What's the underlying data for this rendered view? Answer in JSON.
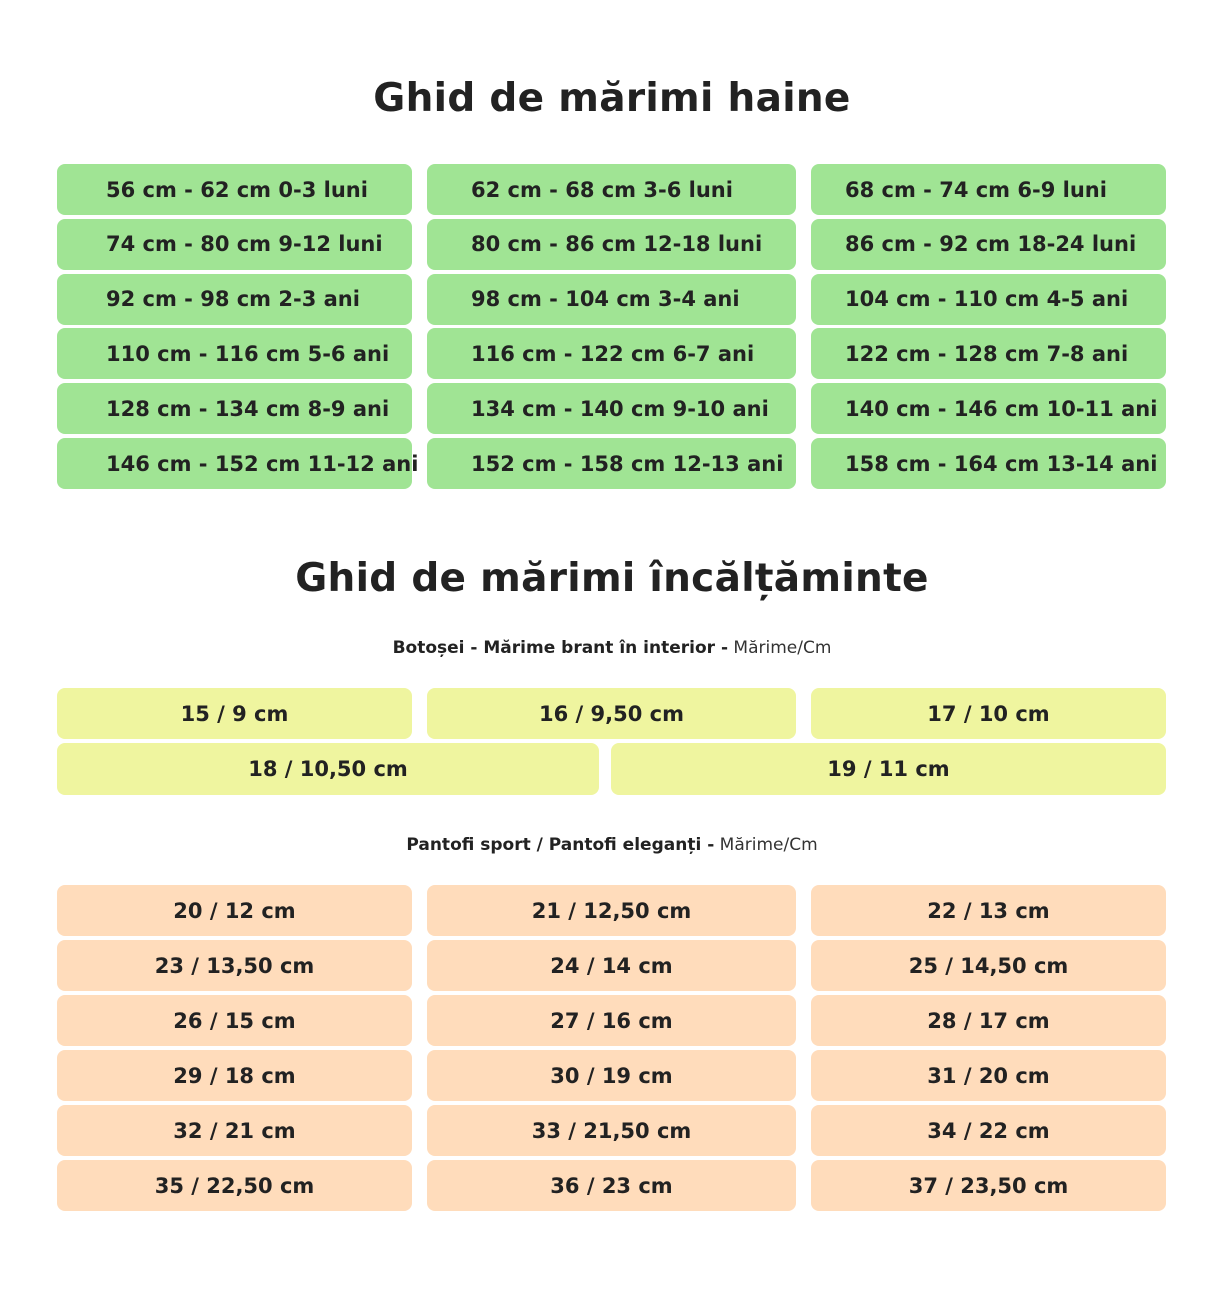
{
  "clothes": {
    "title": "Ghid de mărimi haine",
    "rows": [
      [
        "56 cm - 62 cm 0-3 luni",
        "62 cm - 68 cm 3-6 luni",
        "68 cm - 74 cm 6-9 luni"
      ],
      [
        "74 cm - 80 cm 9-12 luni",
        "80 cm - 86 cm 12-18 luni",
        "86 cm - 92 cm 18-24 luni"
      ],
      [
        "92 cm - 98 cm 2-3 ani",
        "98 cm - 104 cm 3-4 ani",
        "104 cm - 110 cm 4-5 ani"
      ],
      [
        "110 cm - 116 cm 5-6 ani",
        "116 cm - 122 cm 6-7 ani",
        "122 cm - 128 cm 7-8 ani"
      ],
      [
        "128 cm - 134 cm 8-9 ani",
        "134 cm - 140 cm 9-10 ani",
        "140 cm - 146 cm 10-11 ani"
      ],
      [
        "146 cm - 152 cm 11-12 ani",
        "152 cm - 158 cm 12-13 ani",
        "158 cm - 164 cm 13-14 ani"
      ]
    ],
    "color": "#a0e494"
  },
  "shoes": {
    "title": "Ghid de mărimi încălțăminte",
    "slippers": {
      "label_bold": "Botoșei - Mărime brant în interior -",
      "label_light": "Mărime/Cm",
      "row1": [
        "15 / 9 cm",
        "16 / 9,50 cm",
        "17 / 10 cm"
      ],
      "row2": [
        "18 / 10,50 cm",
        "19 / 11 cm"
      ],
      "color": "#eff59f"
    },
    "sneakers": {
      "label_bold": "Pantofi sport / Pantofi eleganți -",
      "label_light": "Mărime/Cm",
      "rows": [
        [
          "20 / 12 cm",
          "21 / 12,50 cm",
          "22 / 13 cm"
        ],
        [
          "23 / 13,50 cm",
          "24 / 14 cm",
          "25 / 14,50 cm"
        ],
        [
          "26 / 15 cm",
          "27 / 16 cm",
          "28 / 17 cm"
        ],
        [
          "29 / 18 cm",
          "30 / 19 cm",
          "31 / 20 cm"
        ],
        [
          "32 / 21 cm",
          "33 / 21,50 cm",
          "34 / 22 cm"
        ],
        [
          "35 / 22,50 cm",
          "36 / 23 cm",
          "37 / 23,50 cm"
        ]
      ],
      "color": "#ffdcbb"
    }
  }
}
